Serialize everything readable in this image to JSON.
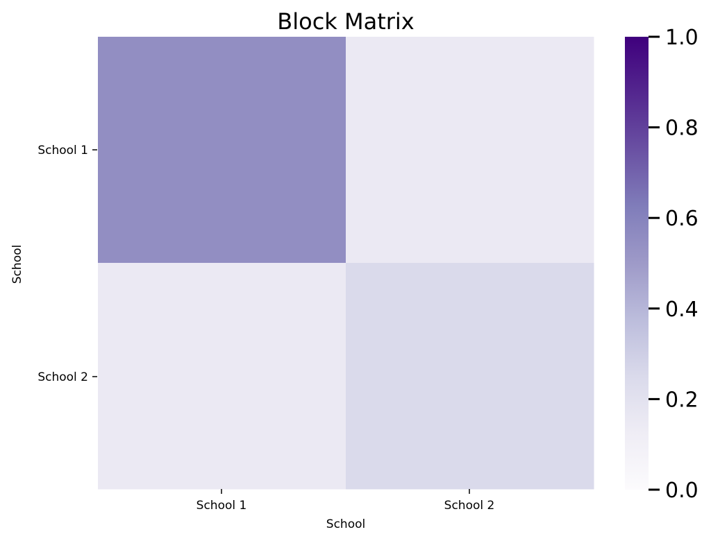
{
  "chart_data": {
    "type": "heatmap",
    "title": "Block Matrix",
    "xlabel": "School",
    "ylabel": "School",
    "x_categories": [
      "School 1",
      "School 2"
    ],
    "y_categories": [
      "School 1",
      "School 2"
    ],
    "values": [
      [
        0.55,
        0.15
      ],
      [
        0.15,
        0.25
      ]
    ],
    "colorbar": {
      "vmin": 0.0,
      "vmax": 1.0,
      "ticks": [
        0.0,
        0.2,
        0.4,
        0.6,
        0.8,
        1.0
      ],
      "tick_labels": [
        "0.0",
        "0.2",
        "0.4",
        "0.6",
        "0.8",
        "1.0"
      ]
    },
    "colormap": "Purples",
    "colormap_stops": [
      "#fcfbfd",
      "#efedf5",
      "#dadaeb",
      "#bcbddc",
      "#9e9ac8",
      "#807dba",
      "#6a51a3",
      "#54278f",
      "#3f007d"
    ],
    "grid": false,
    "legend": "colorbar right"
  }
}
